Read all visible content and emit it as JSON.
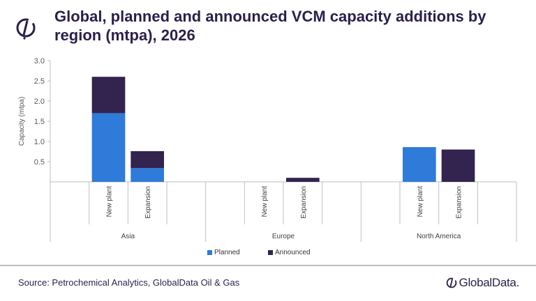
{
  "title": "Global, planned and announced VCM capacity additions by region (mtpa), 2026",
  "source": "Source: Petrochemical Analytics, GlobalData Oil & Gas",
  "brand": "GlobalData.",
  "chart_data": {
    "type": "bar",
    "stacked": true,
    "title": "Global, planned and announced VCM capacity additions by region (mtpa), 2026",
    "ylabel": "Capacity (mtpa)",
    "xlabel": "",
    "ylim": [
      0,
      3.0
    ],
    "yticks": [
      "0.5",
      "1.0",
      "1.5",
      "2.0",
      "2.5",
      "3.0"
    ],
    "grid": false,
    "legend_position": "bottom",
    "groups": [
      "Asia",
      "Europe",
      "North America"
    ],
    "subcategories": [
      "New plant",
      "Expansion"
    ],
    "series": [
      {
        "name": "Planned",
        "color": "#2e7bd9",
        "values": [
          [
            1.7,
            0.34
          ],
          [
            0,
            0
          ],
          [
            0.86,
            0
          ]
        ]
      },
      {
        "name": "Announced",
        "color": "#33234f",
        "values": [
          [
            0.9,
            0.42
          ],
          [
            0,
            0.1
          ],
          [
            0,
            0.8
          ]
        ]
      }
    ]
  }
}
